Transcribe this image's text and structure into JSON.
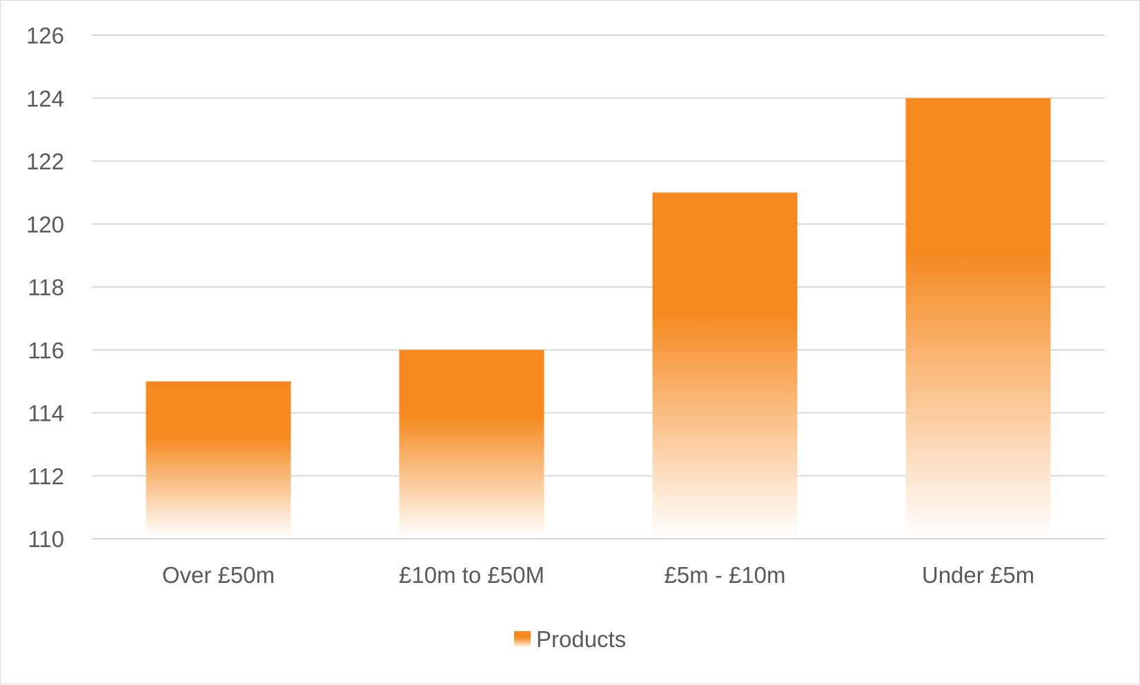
{
  "chart_data": {
    "type": "bar",
    "categories": [
      "Over £50m",
      "£10m to £50M",
      "£5m - £10m",
      "Under £5m"
    ],
    "series": [
      {
        "name": "Products",
        "values": [
          115,
          116,
          121,
          124
        ]
      }
    ],
    "ylim": [
      110,
      126
    ],
    "yticks": [
      110,
      112,
      114,
      116,
      118,
      120,
      122,
      124,
      126
    ],
    "ytick_labels": [
      "110",
      "112",
      "114",
      "116",
      "118",
      "120",
      "122",
      "124",
      "126"
    ],
    "grid": true,
    "legend": "bottom-center",
    "bar_color": "#f5891f",
    "bar_fill": "gradient-to-white-at-base",
    "gridline_color": "#d9d9d9",
    "text_color": "#595959"
  }
}
